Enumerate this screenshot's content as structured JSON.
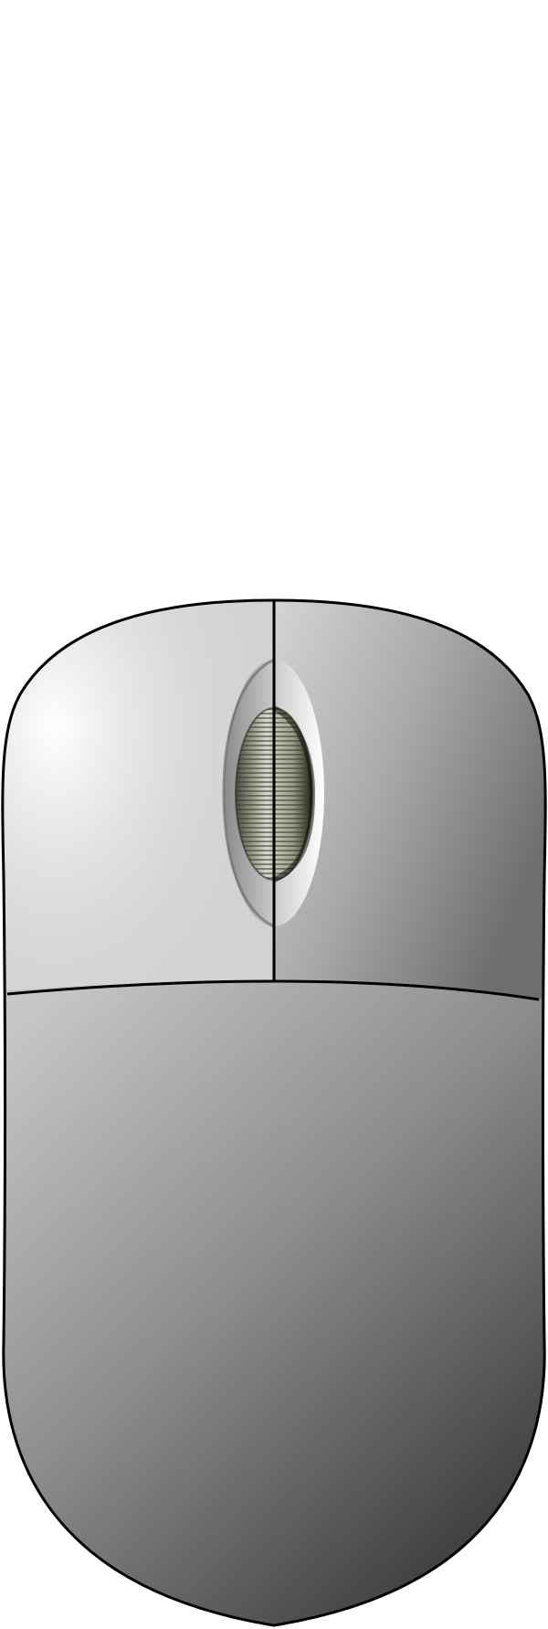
{
  "illustration": {
    "subject": "computer-mouse",
    "colors": {
      "background": "#ffffff",
      "outline": "#000000",
      "body_light": "#f6f6f6",
      "body_mid": "#a8a8a8",
      "body_dark": "#3a3a3a",
      "wheel_light": "#d8d8c8",
      "wheel_dark": "#3c3c30"
    }
  }
}
